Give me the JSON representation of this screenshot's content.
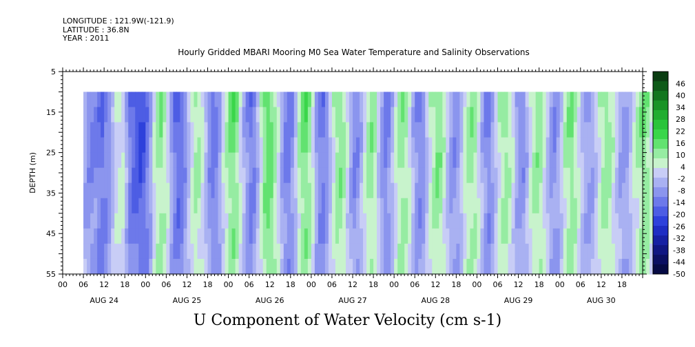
{
  "header": {
    "longitude": "LONGITUDE : 121.9W(-121.9)",
    "latitude": "LATITUDE : 36.8N",
    "year": "YEAR : 2011"
  },
  "chart_data": {
    "type": "heatmap",
    "title": "Hourly Gridded MBARI Mooring M0 Sea Water Temperature and Salinity Observations",
    "caption": "U Component of Water Velocity (cm s-1)",
    "ylabel": "DEPTH (m)",
    "y_ticks": [
      "5",
      "15",
      "25",
      "35",
      "45",
      "55"
    ],
    "ylim": [
      55,
      5
    ],
    "hour_ticks": [
      "00",
      "06",
      "12",
      "18",
      "00",
      "06",
      "12",
      "18",
      "00",
      "06",
      "12",
      "18",
      "00",
      "06",
      "12",
      "18",
      "00",
      "06",
      "12",
      "18",
      "00",
      "06",
      "12",
      "18",
      "00",
      "06",
      "12",
      "18"
    ],
    "day_labels": [
      "AUG 24",
      "AUG 25",
      "AUG 26",
      "AUG 27",
      "AUG 28",
      "AUG 29",
      "AUG 30"
    ],
    "data_start": "AUG 24 06:00",
    "data_top_depth": 10,
    "colorbar_labels": [
      "46",
      "40",
      "34",
      "28",
      "22",
      "16",
      "10",
      "4",
      "-2",
      "-8",
      "-14",
      "-20",
      "-26",
      "-32",
      "-38",
      "-44",
      "-50"
    ],
    "colorbar_colors": [
      "#0b3d12",
      "#0e5a18",
      "#13761f",
      "#199326",
      "#21ad30",
      "#2ac43a",
      "#3ad64a",
      "#62e270",
      "#96eca2",
      "#c8f3cc",
      "#c8cdf6",
      "#a9b1f2",
      "#8b95ee",
      "#6d79ea",
      "#4d5de4",
      "#2e41db",
      "#1e2dc3",
      "#1620a3",
      "#101682",
      "#0b0f62",
      "#060a44"
    ],
    "colorbar_range": [
      -50,
      52
    ],
    "surface_profile_cm_s": [
      -6,
      -10,
      -12,
      -11,
      -14,
      -16,
      -13,
      -10,
      -4,
      2,
      6,
      4,
      -5,
      -14,
      -18,
      -20,
      -22,
      -20,
      -14,
      -6,
      4,
      10,
      12,
      8,
      2,
      -6,
      -14,
      -18,
      -16,
      -10,
      -2,
      6,
      10,
      8,
      4,
      -4,
      -10,
      -14,
      -12,
      -6,
      2,
      8,
      14,
      16,
      12,
      4,
      -4,
      -10,
      -14,
      -12,
      -4,
      6,
      14,
      18,
      16,
      10,
      2,
      -6,
      -12,
      -14,
      -10,
      -2,
      8,
      14,
      16,
      12,
      4,
      -6,
      -12,
      -14,
      -10,
      -2,
      6,
      12,
      14,
      10,
      2,
      -6,
      -12,
      -10,
      -4,
      4,
      10,
      12,
      8,
      0,
      -8,
      -12,
      -10,
      -4,
      4,
      10,
      12,
      10,
      4,
      -4,
      -10,
      -12,
      -10,
      -2,
      6,
      10,
      14,
      12,
      6,
      -2,
      -8,
      -10,
      -8,
      -2,
      6,
      10,
      12,
      10,
      4,
      -4,
      -10,
      -12,
      -8,
      0,
      6,
      10,
      12,
      8,
      2,
      -6,
      -10,
      -10,
      -4,
      4,
      10,
      12,
      10,
      4,
      -2,
      -8,
      -10,
      -6,
      0,
      8,
      12,
      14,
      10,
      4,
      -2,
      -6,
      -8,
      -6,
      0,
      6,
      10,
      12,
      10,
      6,
      0,
      -6,
      -8,
      -6,
      -2,
      4,
      8,
      12,
      14,
      12,
      6
    ]
  }
}
